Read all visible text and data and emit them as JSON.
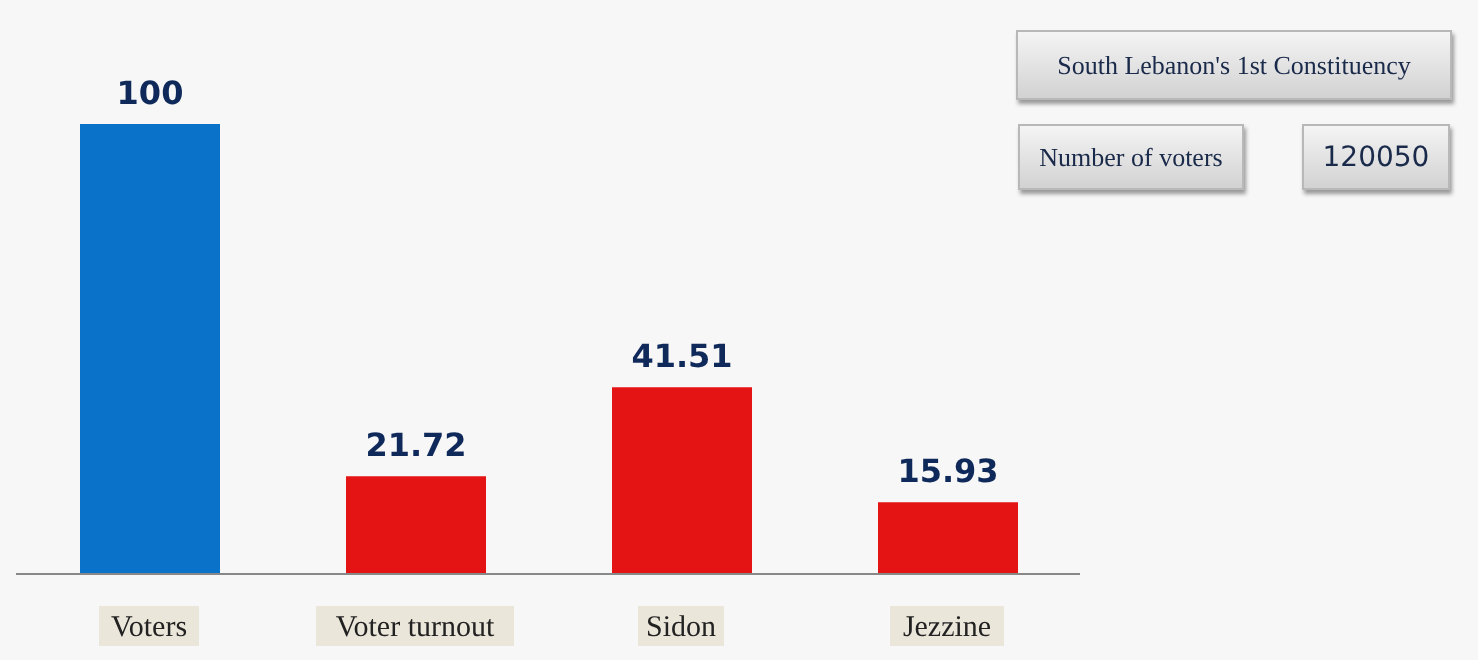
{
  "chart_data": {
    "type": "bar",
    "title": "South Lebanon's 1st Constituency",
    "annotations": [
      "Number of voters",
      "120050"
    ],
    "categories": [
      "Voters",
      "Voter turnout",
      "Sidon",
      "Jezzine"
    ],
    "values": [
      100,
      21.72,
      41.51,
      15.93
    ],
    "colors": [
      "#0a72c8",
      "#e41414",
      "#e41414",
      "#e41414"
    ],
    "data_labels": true,
    "grid": false,
    "legend": false
  }
}
